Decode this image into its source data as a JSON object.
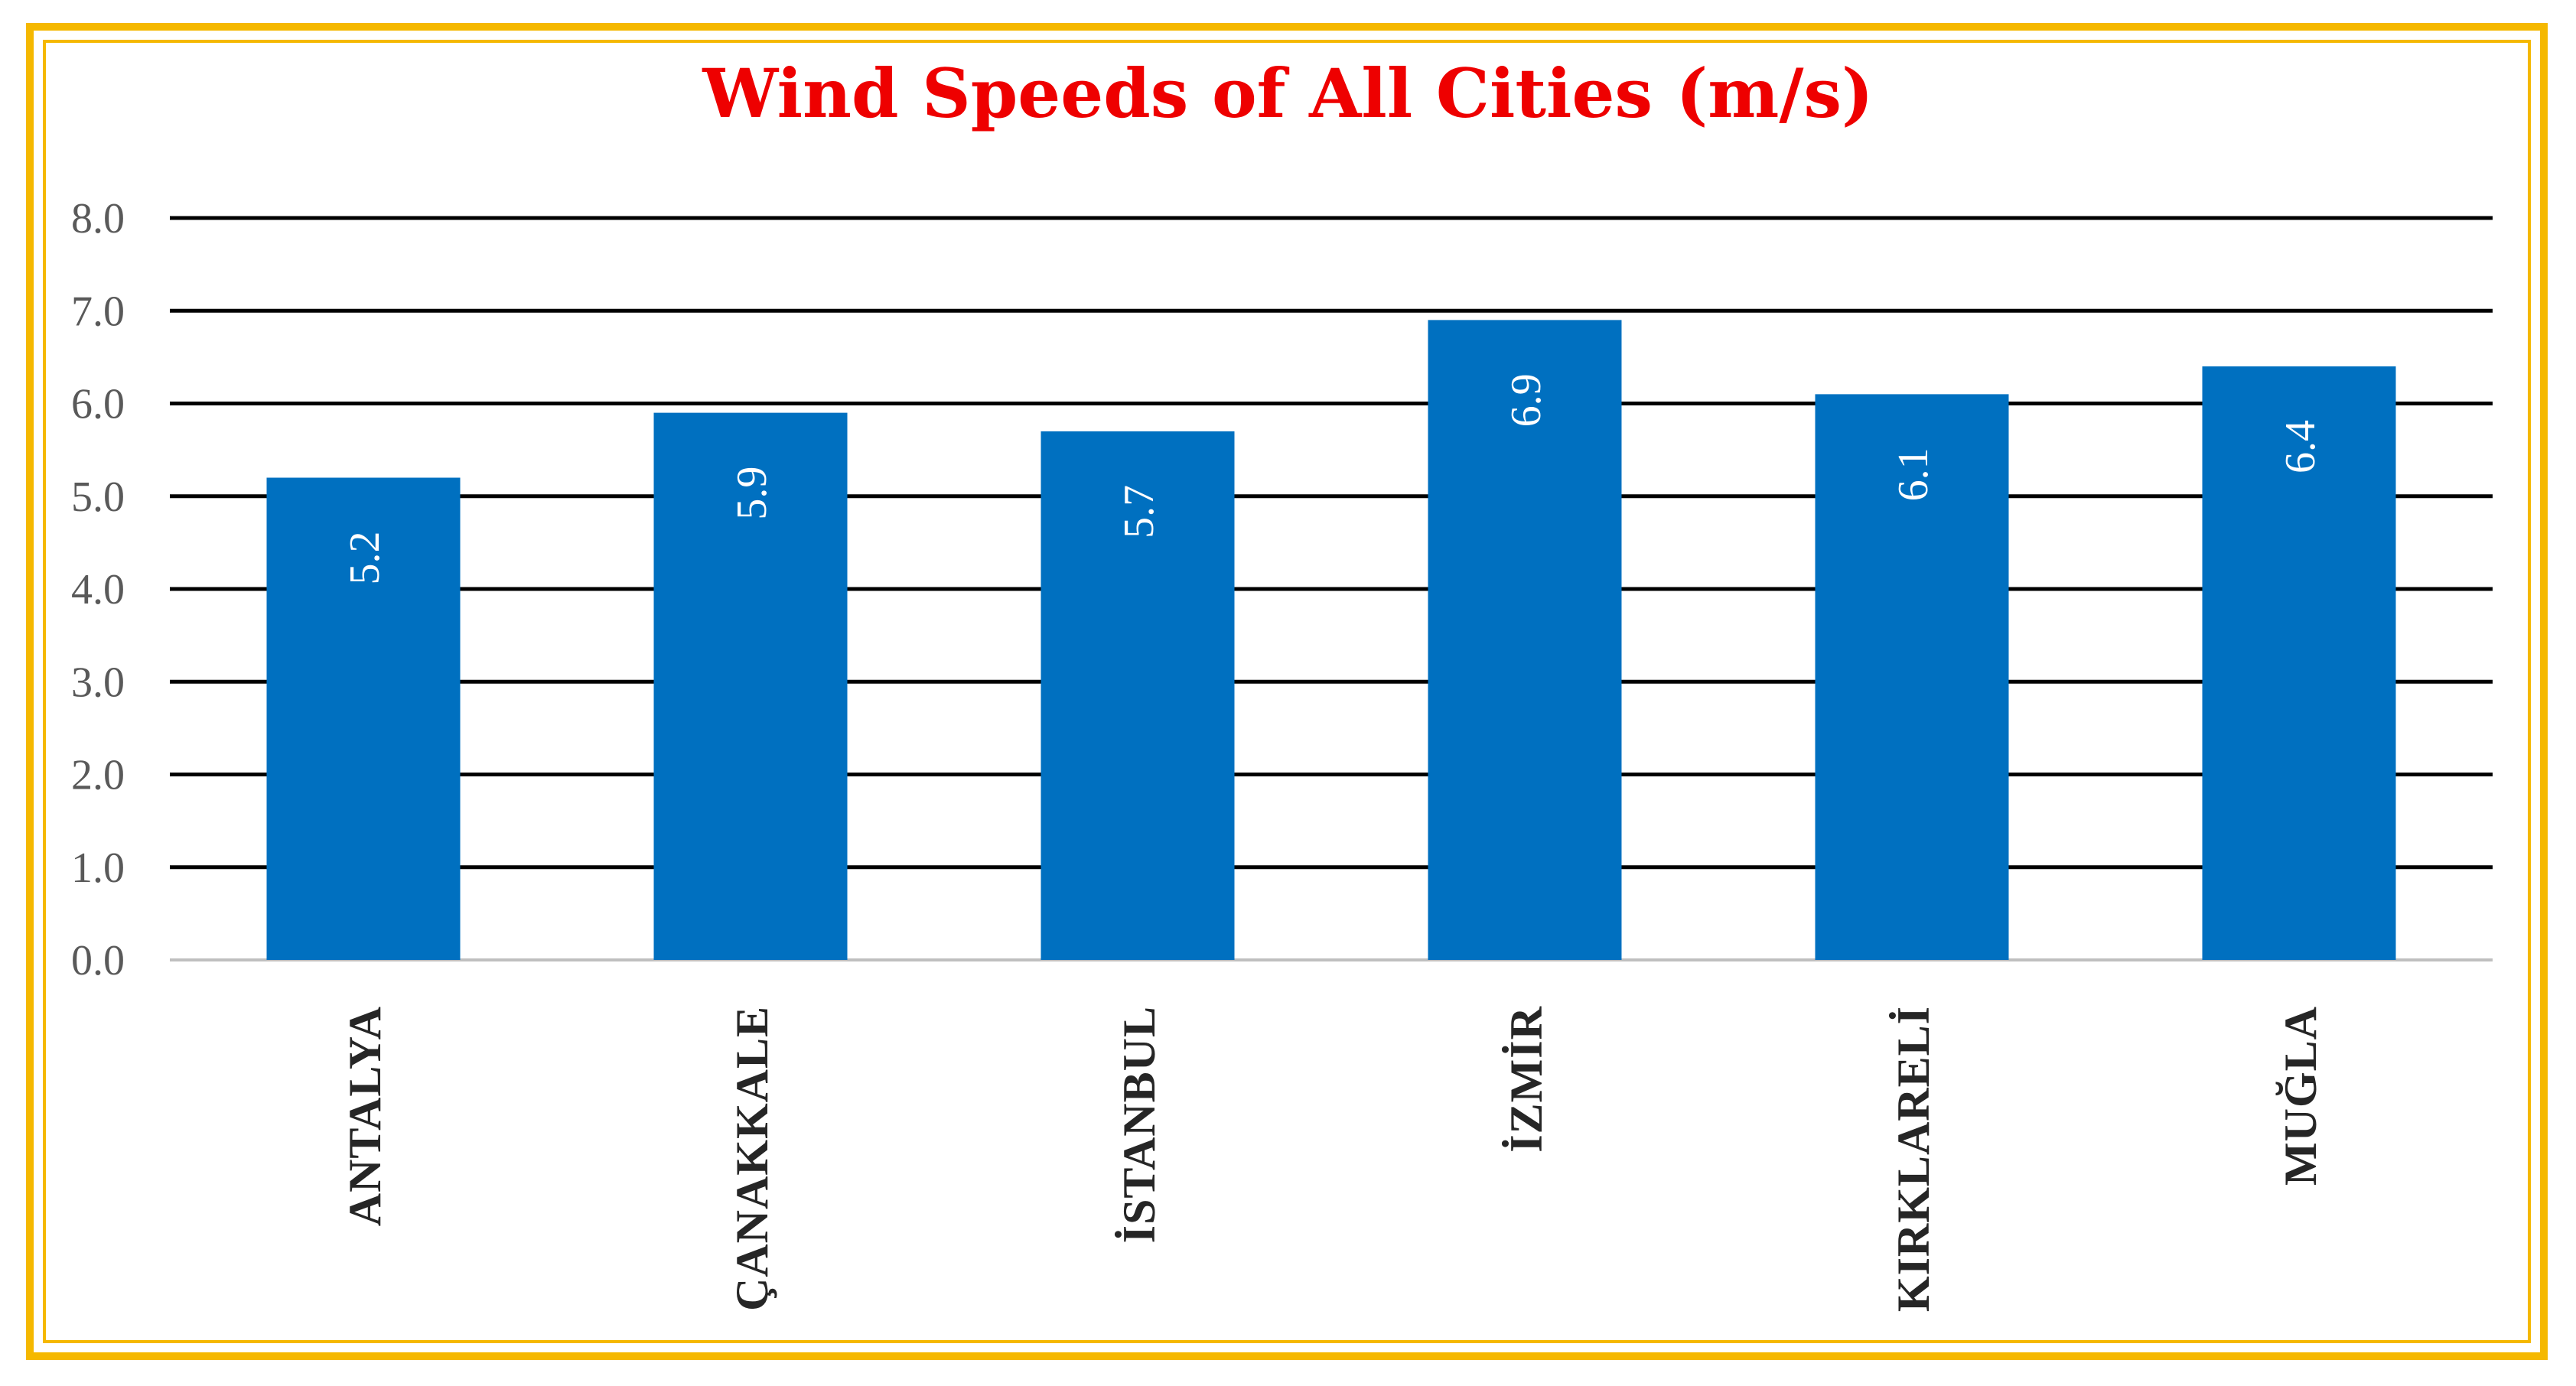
{
  "chart_data": {
    "type": "bar",
    "title": "Wind Speeds of All Cities (m/s)",
    "categories": [
      "ANTALYA",
      "ÇANAKKALE",
      "İSTANBUL",
      "İZMİR",
      "KIRKLARELİ",
      "MUĞLA"
    ],
    "values": [
      5.2,
      5.9,
      5.7,
      6.9,
      6.1,
      6.4
    ],
    "data_labels": [
      "5.2",
      "5.9",
      "5.7",
      "6.9",
      "6.1",
      "6.4"
    ],
    "yticks": [
      "0.0",
      "1.0",
      "2.0",
      "3.0",
      "4.0",
      "5.0",
      "6.0",
      "7.0",
      "8.0"
    ],
    "ylim": [
      0,
      8
    ],
    "grid": true,
    "legend": "none",
    "colors": {
      "bar": "#0070C0",
      "title": "#EE0000",
      "frame": "#F5B800",
      "grid": "#000000"
    }
  }
}
